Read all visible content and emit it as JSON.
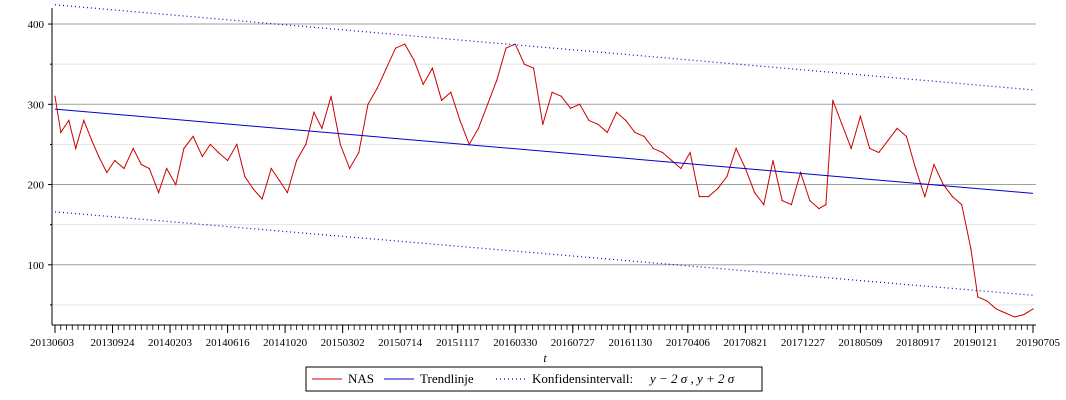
{
  "chart_data": {
    "type": "line",
    "title": "",
    "xlabel": "t",
    "ylabel": "",
    "ylim": [
      25,
      420
    ],
    "y_ticks": [
      100,
      200,
      300,
      400
    ],
    "y_minor_ticks": [
      50,
      150,
      250,
      350
    ],
    "grid": true,
    "x_ticks": [
      {
        "t": 0.0,
        "label": "20130603"
      },
      {
        "t": 0.5,
        "label": "20130924"
      },
      {
        "t": 1.0,
        "label": "20140203"
      },
      {
        "t": 1.5,
        "label": "20140616"
      },
      {
        "t": 2.0,
        "label": "20141020"
      },
      {
        "t": 2.5,
        "label": "20150302"
      },
      {
        "t": 3.0,
        "label": "20150714"
      },
      {
        "t": 3.5,
        "label": "20151117"
      },
      {
        "t": 4.0,
        "label": "20160330"
      },
      {
        "t": 4.5,
        "label": "20160727"
      },
      {
        "t": 5.0,
        "label": "20161130"
      },
      {
        "t": 5.5,
        "label": "20170406"
      },
      {
        "t": 6.0,
        "label": "20170821"
      },
      {
        "t": 6.5,
        "label": "20171227"
      },
      {
        "t": 7.0,
        "label": "20180509"
      },
      {
        "t": 7.5,
        "label": "20180917"
      },
      {
        "t": 8.0,
        "label": "20190121"
      },
      {
        "t": 8.5,
        "label": "20190705"
      }
    ],
    "x_range": [
      0,
      8.5
    ],
    "legend_position": "bottom",
    "series": [
      {
        "name": "NAS",
        "color": "#cc0000",
        "style": "solid",
        "points": [
          [
            0.0,
            310
          ],
          [
            0.05,
            265
          ],
          [
            0.12,
            280
          ],
          [
            0.18,
            245
          ],
          [
            0.25,
            280
          ],
          [
            0.32,
            255
          ],
          [
            0.38,
            235
          ],
          [
            0.45,
            215
          ],
          [
            0.52,
            230
          ],
          [
            0.6,
            220
          ],
          [
            0.68,
            245
          ],
          [
            0.75,
            225
          ],
          [
            0.82,
            220
          ],
          [
            0.9,
            190
          ],
          [
            0.97,
            220
          ],
          [
            1.05,
            200
          ],
          [
            1.12,
            245
          ],
          [
            1.2,
            260
          ],
          [
            1.28,
            235
          ],
          [
            1.35,
            250
          ],
          [
            1.42,
            240
          ],
          [
            1.5,
            230
          ],
          [
            1.58,
            250
          ],
          [
            1.65,
            210
          ],
          [
            1.72,
            195
          ],
          [
            1.8,
            182
          ],
          [
            1.88,
            220
          ],
          [
            1.95,
            205
          ],
          [
            2.02,
            190
          ],
          [
            2.1,
            230
          ],
          [
            2.18,
            250
          ],
          [
            2.25,
            290
          ],
          [
            2.32,
            270
          ],
          [
            2.4,
            310
          ],
          [
            2.48,
            250
          ],
          [
            2.56,
            220
          ],
          [
            2.64,
            240
          ],
          [
            2.72,
            300
          ],
          [
            2.8,
            320
          ],
          [
            2.88,
            345
          ],
          [
            2.96,
            370
          ],
          [
            3.04,
            375
          ],
          [
            3.12,
            355
          ],
          [
            3.2,
            325
          ],
          [
            3.28,
            345
          ],
          [
            3.36,
            305
          ],
          [
            3.44,
            315
          ],
          [
            3.52,
            280
          ],
          [
            3.6,
            250
          ],
          [
            3.68,
            270
          ],
          [
            3.76,
            300
          ],
          [
            3.84,
            330
          ],
          [
            3.92,
            370
          ],
          [
            4.0,
            375
          ],
          [
            4.08,
            350
          ],
          [
            4.16,
            345
          ],
          [
            4.24,
            275
          ],
          [
            4.32,
            315
          ],
          [
            4.4,
            310
          ],
          [
            4.48,
            295
          ],
          [
            4.56,
            300
          ],
          [
            4.64,
            280
          ],
          [
            4.72,
            275
          ],
          [
            4.8,
            265
          ],
          [
            4.88,
            290
          ],
          [
            4.96,
            280
          ],
          [
            5.04,
            265
          ],
          [
            5.12,
            260
          ],
          [
            5.2,
            245
          ],
          [
            5.28,
            240
          ],
          [
            5.36,
            230
          ],
          [
            5.44,
            220
          ],
          [
            5.52,
            240
          ],
          [
            5.6,
            185
          ],
          [
            5.68,
            185
          ],
          [
            5.76,
            195
          ],
          [
            5.84,
            210
          ],
          [
            5.92,
            245
          ],
          [
            6.0,
            220
          ],
          [
            6.08,
            190
          ],
          [
            6.16,
            175
          ],
          [
            6.24,
            230
          ],
          [
            6.32,
            180
          ],
          [
            6.4,
            175
          ],
          [
            6.48,
            215
          ],
          [
            6.56,
            180
          ],
          [
            6.64,
            170
          ],
          [
            6.7,
            175
          ],
          [
            6.76,
            305
          ],
          [
            6.84,
            275
          ],
          [
            6.92,
            245
          ],
          [
            7.0,
            285
          ],
          [
            7.08,
            245
          ],
          [
            7.16,
            240
          ],
          [
            7.24,
            255
          ],
          [
            7.32,
            270
          ],
          [
            7.4,
            260
          ],
          [
            7.48,
            220
          ],
          [
            7.56,
            185
          ],
          [
            7.64,
            225
          ],
          [
            7.72,
            200
          ],
          [
            7.8,
            185
          ],
          [
            7.88,
            175
          ],
          [
            7.96,
            120
          ],
          [
            8.02,
            60
          ],
          [
            8.1,
            55
          ],
          [
            8.18,
            45
          ],
          [
            8.26,
            40
          ],
          [
            8.34,
            35
          ],
          [
            8.42,
            38
          ],
          [
            8.5,
            45
          ]
        ]
      },
      {
        "name": "Trendlinje",
        "color": "#0000cc",
        "style": "solid",
        "points": [
          [
            0.0,
            294
          ],
          [
            8.5,
            189
          ]
        ]
      },
      {
        "name": "Konfidensintervall:",
        "legend_math": "y − 2 σ , y + 2 σ",
        "color": "#0000cc",
        "style": "dotted",
        "bands": [
          [
            [
              0.0,
              424
            ],
            [
              8.5,
              318
            ]
          ],
          [
            [
              0.0,
              166
            ],
            [
              8.5,
              62
            ]
          ]
        ]
      }
    ]
  }
}
